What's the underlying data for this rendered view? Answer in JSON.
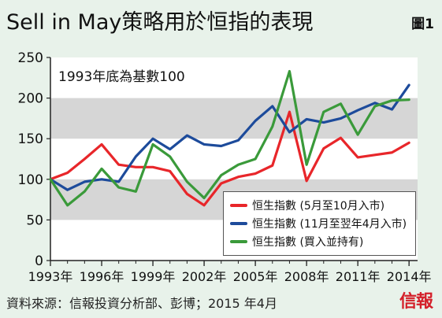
{
  "header": {
    "title": "Sell in May策略用於恒指的表現",
    "figure_label": "圖1"
  },
  "footer": {
    "source": "資料來源：信報投資分析部、彭博；2015 年4月",
    "brand": "信報"
  },
  "colors": {
    "red": "#e8262a",
    "blue": "#1d4b9b",
    "green": "#3a9a3a",
    "band": "#d6d6d6",
    "plot_bg": "#ffffff"
  },
  "chart_data": {
    "type": "line",
    "title": "Sell in May策略用於恒指的表現",
    "annotation": "1993年底為基數100",
    "ylim": [
      0,
      250
    ],
    "yticks": [
      0,
      50,
      100,
      150,
      200,
      250
    ],
    "xlim": [
      1993,
      2014.5
    ],
    "xticks": [
      1993,
      1996,
      1999,
      2002,
      2005,
      2008,
      2011,
      2014
    ],
    "xtick_labels": [
      "1993年",
      "1996年",
      "1999年",
      "2002年",
      "2005年",
      "2008年",
      "2011年",
      "2014年"
    ],
    "legend_position": "bottom-right",
    "grid": "alternating horizontal bands",
    "series": [
      {
        "name": "恒生指數 (5月至10月入市)",
        "color": "#e8262a",
        "x": [
          1993,
          1994,
          1995,
          1996,
          1997,
          1998,
          1999,
          2000,
          2001,
          2002,
          2003,
          2004,
          2005,
          2006,
          2007,
          2008,
          2009,
          2010,
          2011,
          2012,
          2013,
          2014
        ],
        "values": [
          100,
          108,
          125,
          143,
          118,
          115,
          115,
          110,
          82,
          68,
          95,
          103,
          107,
          117,
          183,
          98,
          138,
          151,
          127,
          130,
          133,
          145
        ]
      },
      {
        "name": "恒生指數 (11月至翌年4月入市)",
        "color": "#1d4b9b",
        "x": [
          1993,
          1994,
          1995,
          1996,
          1997,
          1998,
          1999,
          2000,
          2001,
          2002,
          2003,
          2004,
          2005,
          2006,
          2007,
          2008,
          2009,
          2010,
          2011,
          2012,
          2013,
          2014
        ],
        "values": [
          100,
          87,
          97,
          100,
          97,
          128,
          150,
          137,
          154,
          143,
          141,
          148,
          172,
          190,
          158,
          174,
          170,
          175,
          185,
          194,
          186,
          216
        ]
      },
      {
        "name": "恒生指數 (買入並持有)",
        "color": "#3a9a3a",
        "x": [
          1993,
          1994,
          1995,
          1996,
          1997,
          1998,
          1999,
          2000,
          2001,
          2002,
          2003,
          2004,
          2005,
          2006,
          2007,
          2008,
          2009,
          2010,
          2011,
          2012,
          2013,
          2014
        ],
        "values": [
          100,
          68,
          85,
          113,
          90,
          85,
          143,
          128,
          97,
          77,
          105,
          118,
          125,
          165,
          233,
          118,
          183,
          193,
          155,
          190,
          197,
          198
        ]
      }
    ]
  }
}
